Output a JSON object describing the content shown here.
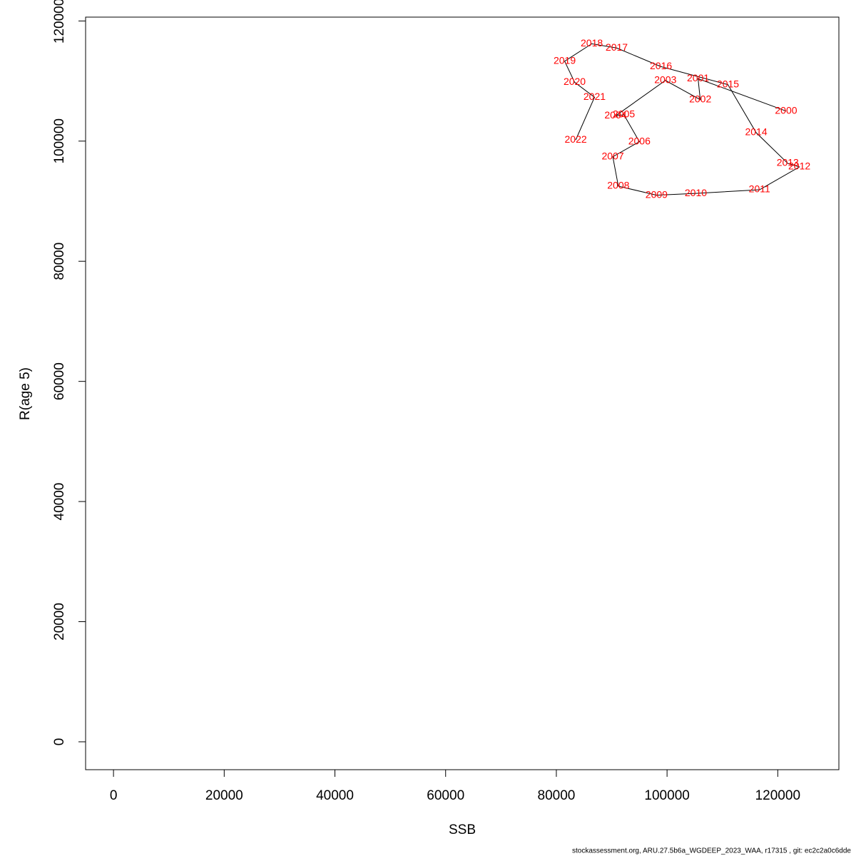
{
  "chart_data": {
    "type": "line",
    "xlabel": "SSB",
    "ylabel": "R(age 5)",
    "footer": "stockassessment.org, ARU.27.5b6a_WGDEEP_2023_WAA, r17315 , git: ec2c2a0c6dde",
    "point_labels": [
      "2000",
      "2001",
      "2002",
      "2003",
      "2004",
      "2005",
      "2006",
      "2007",
      "2008",
      "2009",
      "2010",
      "2011",
      "2012",
      "2013",
      "2014",
      "2015",
      "2016",
      "2017",
      "2018",
      "2019",
      "2020",
      "2021",
      "2022"
    ],
    "x": [
      121500,
      105600,
      106000,
      99700,
      90700,
      92200,
      95000,
      90200,
      91200,
      98100,
      105200,
      116700,
      123900,
      121800,
      116100,
      111000,
      98900,
      90900,
      86400,
      81500,
      83300,
      86900,
      83500
    ],
    "y": [
      105000,
      110400,
      106900,
      110100,
      104200,
      104400,
      99900,
      97400,
      92500,
      91000,
      91300,
      91900,
      95700,
      96300,
      101400,
      109400,
      112400,
      115500,
      116200,
      113300,
      109800,
      107300,
      100200
    ],
    "line_color": "#000000",
    "label_color": "#ff0000",
    "xlim": [
      -5040,
      131040
    ],
    "ylim": [
      -4640,
      120640
    ],
    "xticks": [
      0,
      20000,
      40000,
      60000,
      80000,
      100000,
      120000
    ],
    "yticks": [
      0,
      20000,
      40000,
      60000,
      80000,
      100000,
      120000
    ]
  }
}
